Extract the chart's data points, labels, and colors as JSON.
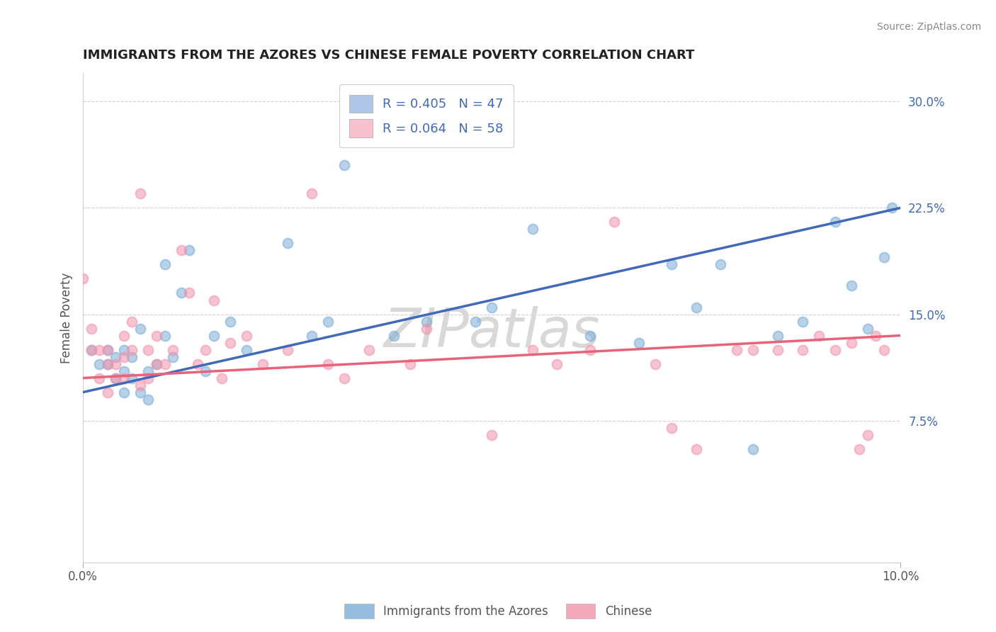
{
  "title": "IMMIGRANTS FROM THE AZORES VS CHINESE FEMALE POVERTY CORRELATION CHART",
  "source": "Source: ZipAtlas.com",
  "ylabel": "Female Poverty",
  "watermark": "ZIPatlas",
  "xlim": [
    0.0,
    0.1
  ],
  "ylim": [
    -0.025,
    0.32
  ],
  "yticks_right": [
    0.075,
    0.15,
    0.225,
    0.3
  ],
  "ytick_labels_right": [
    "7.5%",
    "15.0%",
    "22.5%",
    "30.0%"
  ],
  "legend_entries": [
    {
      "label": "R = 0.405   N = 47",
      "color": "#aec6e8"
    },
    {
      "label": "R = 0.064   N = 58",
      "color": "#f9c0ce"
    }
  ],
  "blue_color": "#7aacd6",
  "pink_color": "#f093aa",
  "blue_line_color": "#4169b8",
  "pink_line_color": "#e8637a",
  "background_color": "#ffffff",
  "grid_color": "#d0d0d0",
  "title_color": "#222222",
  "source_color": "#888888",
  "watermark_color": "#d8d8d8",
  "blue_scatter_x": [
    0.001,
    0.002,
    0.003,
    0.003,
    0.004,
    0.004,
    0.005,
    0.005,
    0.005,
    0.006,
    0.006,
    0.007,
    0.007,
    0.008,
    0.008,
    0.009,
    0.01,
    0.01,
    0.011,
    0.012,
    0.013,
    0.015,
    0.016,
    0.018,
    0.02,
    0.025,
    0.028,
    0.03,
    0.032,
    0.038,
    0.042,
    0.048,
    0.05,
    0.055,
    0.062,
    0.068,
    0.072,
    0.075,
    0.078,
    0.082,
    0.085,
    0.088,
    0.092,
    0.094,
    0.096,
    0.098,
    0.099
  ],
  "blue_scatter_y": [
    0.125,
    0.115,
    0.115,
    0.125,
    0.105,
    0.12,
    0.095,
    0.11,
    0.125,
    0.105,
    0.12,
    0.095,
    0.14,
    0.09,
    0.11,
    0.115,
    0.185,
    0.135,
    0.12,
    0.165,
    0.195,
    0.11,
    0.135,
    0.145,
    0.125,
    0.2,
    0.135,
    0.145,
    0.255,
    0.135,
    0.145,
    0.145,
    0.155,
    0.21,
    0.135,
    0.13,
    0.185,
    0.155,
    0.185,
    0.055,
    0.135,
    0.145,
    0.215,
    0.17,
    0.14,
    0.19,
    0.225
  ],
  "pink_scatter_x": [
    0.0,
    0.001,
    0.001,
    0.002,
    0.002,
    0.003,
    0.003,
    0.003,
    0.004,
    0.004,
    0.005,
    0.005,
    0.005,
    0.006,
    0.006,
    0.007,
    0.007,
    0.008,
    0.008,
    0.009,
    0.009,
    0.01,
    0.011,
    0.012,
    0.013,
    0.014,
    0.015,
    0.016,
    0.017,
    0.018,
    0.02,
    0.022,
    0.025,
    0.028,
    0.03,
    0.032,
    0.035,
    0.04,
    0.042,
    0.05,
    0.055,
    0.058,
    0.062,
    0.065,
    0.07,
    0.072,
    0.075,
    0.08,
    0.082,
    0.085,
    0.088,
    0.09,
    0.092,
    0.094,
    0.095,
    0.096,
    0.097,
    0.098
  ],
  "pink_scatter_y": [
    0.175,
    0.125,
    0.14,
    0.105,
    0.125,
    0.115,
    0.125,
    0.095,
    0.115,
    0.105,
    0.105,
    0.12,
    0.135,
    0.125,
    0.145,
    0.1,
    0.235,
    0.105,
    0.125,
    0.115,
    0.135,
    0.115,
    0.125,
    0.195,
    0.165,
    0.115,
    0.125,
    0.16,
    0.105,
    0.13,
    0.135,
    0.115,
    0.125,
    0.235,
    0.115,
    0.105,
    0.125,
    0.115,
    0.14,
    0.065,
    0.125,
    0.115,
    0.125,
    0.215,
    0.115,
    0.07,
    0.055,
    0.125,
    0.125,
    0.125,
    0.125,
    0.135,
    0.125,
    0.13,
    0.055,
    0.065,
    0.135,
    0.125
  ],
  "blue_line_x": [
    0.0,
    0.1
  ],
  "blue_line_y": [
    0.095,
    0.225
  ],
  "pink_line_x": [
    0.0,
    0.1
  ],
  "pink_line_y": [
    0.105,
    0.135
  ],
  "dot_size": 100,
  "dot_alpha": 0.55
}
